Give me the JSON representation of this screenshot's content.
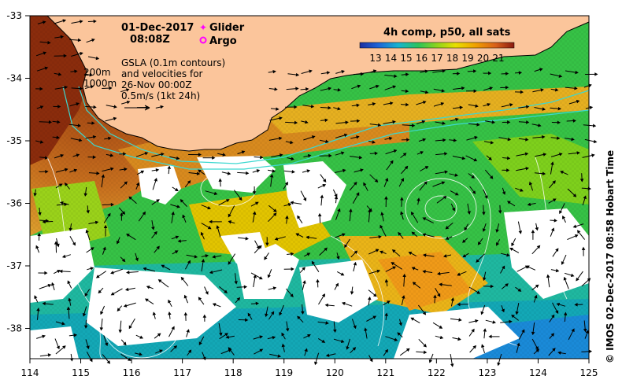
{
  "map": {
    "date": "01-Dec-2017",
    "time": "08:08Z",
    "legend": {
      "glider": "Glider",
      "argo": "Argo",
      "glider_color": "#ff00ff",
      "argo_color": "#ff00ff"
    },
    "annotation_lines": [
      "GSLA (0.1m contours)",
      "and velocities for",
      "26-Nov 00:00Z",
      "0.5m/s (1kt 24h)"
    ],
    "depth_labels": [
      "200m",
      "1000m"
    ],
    "colorbar": {
      "title": "4h comp, p50, all sats",
      "ticks": [
        "13",
        "14",
        "15",
        "16",
        "17",
        "18",
        "19",
        "20",
        "21"
      ]
    },
    "credit": "© IMOS 02-Dec-2017 08:58 Hobart Time",
    "x_ticks": [
      "114",
      "115",
      "116",
      "117",
      "118",
      "119",
      "120",
      "121",
      "122",
      "123",
      "124",
      "125"
    ],
    "y_ticks": [
      "-33",
      "-34",
      "-35",
      "-36",
      "-37",
      "-38"
    ],
    "colors": {
      "land": "#fbc59b",
      "warm": "#b85a1a",
      "mid": "#e2c400",
      "cool": "#36c246",
      "cold": "#0aa6b4",
      "cloud": "#ffffff"
    }
  }
}
